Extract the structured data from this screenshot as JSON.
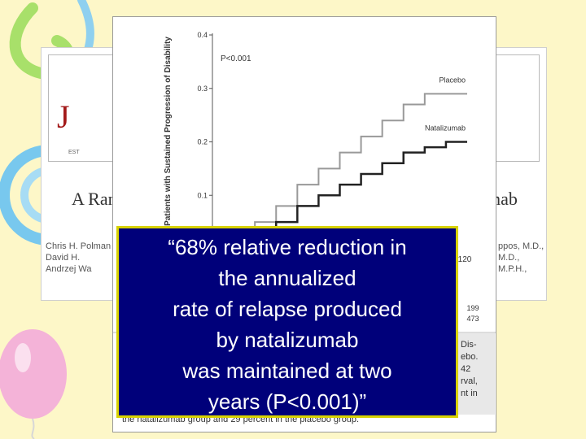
{
  "background": {
    "color": "#fdf7c8",
    "decorations": [
      "swirl-top-left",
      "spiral-left",
      "balloon-bottom-left"
    ]
  },
  "paper": {
    "journal_initial": "J",
    "est_text": "EST",
    "title_start": "A Ran",
    "title_end": "mab",
    "authors_left": [
      "Chris H. Polman",
      "David H.",
      "Andrzej Wa"
    ],
    "authors_right": [
      "ppos, M.D.,",
      "M.D.,",
      "M.P.H.,"
    ],
    "abstract_fragment": [
      "Dis-",
      "ebo.",
      "42",
      "rval,",
      "nt in"
    ],
    "bottom_line": "the natalizumab group and 29 percent in the placebo group."
  },
  "chart_data": {
    "type": "line",
    "ylabel": "Proportion of Patients with Sustained Progression of Disability",
    "yticks": [
      "0.1",
      "0.2",
      "0.3",
      "0.4"
    ],
    "ylim": [
      0,
      0.4
    ],
    "annotation": "P<0.001",
    "tick_label_right": "120",
    "at_risk_right": [
      "199",
      "473"
    ],
    "series": [
      {
        "name": "Placebo",
        "color": "#999999",
        "values": [
          [
            0,
            0.0
          ],
          [
            10,
            0.02
          ],
          [
            20,
            0.05
          ],
          [
            30,
            0.08
          ],
          [
            40,
            0.12
          ],
          [
            50,
            0.15
          ],
          [
            60,
            0.18
          ],
          [
            70,
            0.21
          ],
          [
            80,
            0.24
          ],
          [
            90,
            0.27
          ],
          [
            100,
            0.29
          ],
          [
            110,
            0.29
          ],
          [
            120,
            0.29
          ]
        ]
      },
      {
        "name": "Natalizumab",
        "color": "#222222",
        "values": [
          [
            0,
            0.0
          ],
          [
            10,
            0.01
          ],
          [
            20,
            0.03
          ],
          [
            30,
            0.05
          ],
          [
            40,
            0.08
          ],
          [
            50,
            0.1
          ],
          [
            60,
            0.12
          ],
          [
            70,
            0.14
          ],
          [
            80,
            0.16
          ],
          [
            90,
            0.18
          ],
          [
            100,
            0.19
          ],
          [
            110,
            0.2
          ],
          [
            120,
            0.2
          ]
        ]
      }
    ]
  },
  "callout": {
    "lines": [
      "“68% relative reduction in",
      "the annualized",
      "rate of relapse produced",
      "by natalizumab",
      "was maintained at two",
      "years (P<0.001)”"
    ],
    "bg_color": "#00007a",
    "border_color": "#d8d200"
  }
}
